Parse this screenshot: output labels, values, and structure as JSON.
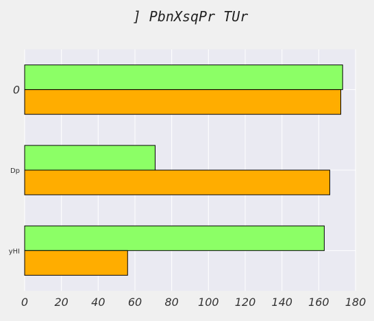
{
  "chart_data": {
    "type": "bar",
    "orientation": "horizontal",
    "title": "] PbnXsqPr TUr",
    "xlabel": "",
    "ylabel": "",
    "categories": [
      "0",
      "Dp",
      "yHI"
    ],
    "series": [
      {
        "values": [
          173,
          71,
          163
        ],
        "color": "#8cff66"
      },
      {
        "values": [
          172,
          166,
          56
        ],
        "color": "#ffad00"
      }
    ],
    "xlim": [
      0,
      180
    ],
    "xticks": [
      "0",
      "20",
      "40",
      "60",
      "80",
      "100",
      "120",
      "140",
      "160",
      "180"
    ],
    "grid": true,
    "legend": "none",
    "colors": {
      "plot_background": "#eaeaf2",
      "figure_background": "#f0f0f0",
      "grid": "#ffffff",
      "bar_edge": "#000000"
    }
  }
}
